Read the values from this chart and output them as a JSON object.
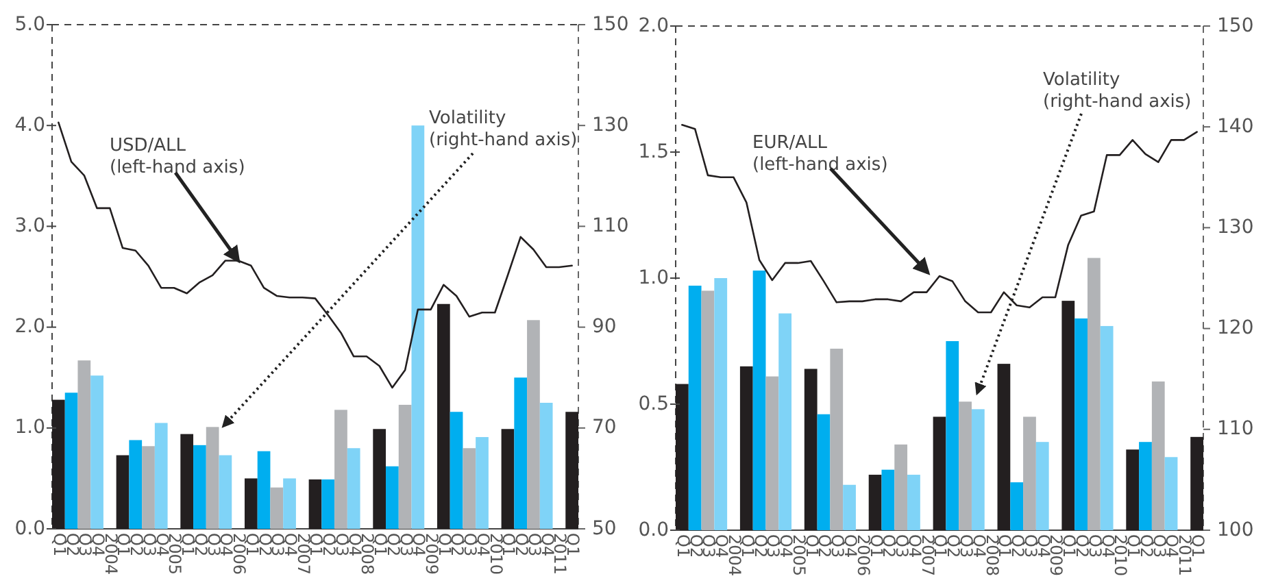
{
  "chart_data": [
    {
      "type": "bar",
      "categories": [
        "Q1",
        "Q2",
        "Q3",
        "Q4",
        "2004",
        "Q1",
        "Q2",
        "Q3",
        "Q4",
        "2005",
        "Q1",
        "Q2",
        "Q3",
        "Q4",
        "2006",
        "Q1",
        "Q2",
        "Q3",
        "Q4",
        "2007",
        "Q1",
        "Q2",
        "Q3",
        "Q4",
        "2008",
        "Q1",
        "Q2",
        "Q3",
        "Q4",
        "2009",
        "Q1",
        "Q2",
        "Q3",
        "Q4",
        "2010",
        "Q1",
        "Q2",
        "Q3",
        "Q4",
        "2011",
        "Q1"
      ],
      "series": [
        {
          "axis": "y",
          "values": [
            1.28,
            1.35,
            1.67,
            1.52,
            null,
            0.73,
            0.88,
            0.82,
            1.05,
            null,
            0.94,
            0.83,
            1.01,
            0.73,
            null,
            0.5,
            0.77,
            0.41,
            0.5,
            null,
            0.49,
            0.49,
            1.18,
            0.8,
            null,
            0.99,
            0.62,
            1.23,
            4.0,
            null,
            2.23,
            1.16,
            0.8,
            0.91,
            null,
            0.99,
            1.5,
            2.07,
            1.25,
            null,
            1.16
          ],
          "colors": [
            "#231f20",
            "#00aeef",
            "#b1b3b6",
            "#7fd3f7",
            null,
            "#231f20",
            "#00aeef",
            "#b1b3b6",
            "#7fd3f7",
            null,
            "#231f20",
            "#00aeef",
            "#b1b3b6",
            "#7fd3f7",
            null,
            "#231f20",
            "#00aeef",
            "#b1b3b6",
            "#7fd3f7",
            null,
            "#231f20",
            "#00aeef",
            "#b1b3b6",
            "#7fd3f7",
            null,
            "#231f20",
            "#00aeef",
            "#b1b3b6",
            "#7fd3f7",
            null,
            "#231f20",
            "#00aeef",
            "#b1b3b6",
            "#7fd3f7",
            null,
            "#231f20",
            "#00aeef",
            "#b1b3b6",
            "#7fd3f7",
            null,
            "#231f20"
          ]
        },
        {
          "type": "line",
          "axis": "y2",
          "color": "#231f20",
          "values": [
            130.6,
            122.8,
            120.1,
            113.6,
            113.6,
            105.7,
            105.2,
            102.2,
            97.8,
            97.8,
            96.7,
            98.9,
            100.3,
            103.2,
            103.2,
            102.2,
            97.8,
            96.2,
            95.9,
            95.9,
            95.7,
            92.4,
            88.9,
            84.2,
            84.2,
            82.3,
            78.0,
            81.5,
            93.5,
            93.5,
            98.4,
            96.2,
            92.1,
            92.9,
            92.9,
            100.3,
            107.9,
            105.4,
            101.9,
            101.9,
            102.2
          ]
        }
      ],
      "ylim": [
        0,
        5
      ],
      "yticks": [
        {
          "value": 0,
          "label": "0.0"
        },
        {
          "value": 1,
          "label": "1.0"
        },
        {
          "value": 2,
          "label": "2.0"
        },
        {
          "value": 3,
          "label": "3.0"
        },
        {
          "value": 4,
          "label": "4.0"
        },
        {
          "value": 5,
          "label": "5.0"
        }
      ],
      "y2lim": [
        50,
        150
      ],
      "y2ticks": [
        50,
        70,
        90,
        110,
        130,
        150
      ],
      "annotations": [
        {
          "text": "USD/ALL\n(left-hand axis)",
          "x": "2006",
          "y": 2.66
        },
        "Volatility\n(right-hand axis)"
      ]
    },
    {
      "type": "bar",
      "categories": [
        "Q1",
        "Q2",
        "Q3",
        "Q4",
        "2004",
        "Q1",
        "Q2",
        "Q3",
        "Q4",
        "2005",
        "Q1",
        "Q2",
        "Q3",
        "Q4",
        "2006",
        "Q1",
        "Q2",
        "Q3",
        "Q4",
        "2007",
        "Q1",
        "Q2",
        "Q3",
        "Q4",
        "2008",
        "Q1",
        "Q2",
        "Q3",
        "Q4",
        "2009",
        "Q1",
        "Q2",
        "Q3",
        "Q4",
        "2010",
        "Q1",
        "Q2",
        "Q3",
        "Q4",
        "2011",
        "Q1"
      ],
      "series": [
        {
          "axis": "y",
          "values": [
            0.58,
            0.97,
            0.95,
            1.0,
            null,
            0.65,
            1.03,
            0.61,
            0.86,
            null,
            0.64,
            0.46,
            0.72,
            0.18,
            null,
            0.22,
            0.24,
            0.34,
            0.22,
            null,
            0.45,
            0.75,
            0.51,
            0.48,
            null,
            0.66,
            0.19,
            0.45,
            0.35,
            null,
            0.91,
            0.84,
            1.08,
            0.81,
            null,
            0.32,
            0.35,
            0.59,
            0.29,
            null,
            0.37
          ],
          "colors": [
            "#231f20",
            "#00aeef",
            "#b1b3b6",
            "#7fd3f7",
            null,
            "#231f20",
            "#00aeef",
            "#b1b3b6",
            "#7fd3f7",
            null,
            "#231f20",
            "#00aeef",
            "#b1b3b6",
            "#7fd3f7",
            null,
            "#231f20",
            "#00aeef",
            "#b1b3b6",
            "#7fd3f7",
            null,
            "#231f20",
            "#00aeef",
            "#b1b3b6",
            "#7fd3f7",
            null,
            "#231f20",
            "#00aeef",
            "#b1b3b6",
            "#7fd3f7",
            null,
            "#231f20",
            "#00aeef",
            "#b1b3b6",
            "#7fd3f7",
            null,
            "#231f20",
            "#00aeef",
            "#b1b3b6",
            "#7fd3f7",
            null,
            "#231f20"
          ]
        },
        {
          "type": "line",
          "axis": "y2",
          "color": "#231f20",
          "values": [
            140.2,
            139.8,
            135.2,
            135.0,
            135.0,
            132.5,
            126.8,
            124.8,
            126.5,
            126.5,
            126.7,
            124.7,
            122.6,
            122.7,
            122.7,
            122.9,
            122.9,
            122.7,
            123.6,
            123.6,
            125.2,
            124.7,
            122.7,
            121.6,
            121.6,
            123.6,
            122.3,
            122.1,
            123.1,
            123.1,
            128.3,
            131.2,
            131.6,
            137.2,
            137.2,
            138.7,
            137.3,
            136.5,
            138.7,
            138.7,
            139.5
          ]
        }
      ],
      "ylim": [
        0,
        2
      ],
      "yticks": [
        {
          "value": 0,
          "label": "0.0"
        },
        {
          "value": 0.5,
          "label": "0.5"
        },
        {
          "value": 1,
          "label": "1.0"
        },
        {
          "value": 1.5,
          "label": "1.5"
        },
        {
          "value": 2,
          "label": "2.0"
        }
      ],
      "y2lim": [
        100,
        150
      ],
      "y2ticks": [
        100,
        110,
        120,
        130,
        140,
        150
      ],
      "annotations": [
        "EUR/ALL\n(left-hand axis)",
        "Volatility\n(right-hand axis)"
      ]
    }
  ]
}
